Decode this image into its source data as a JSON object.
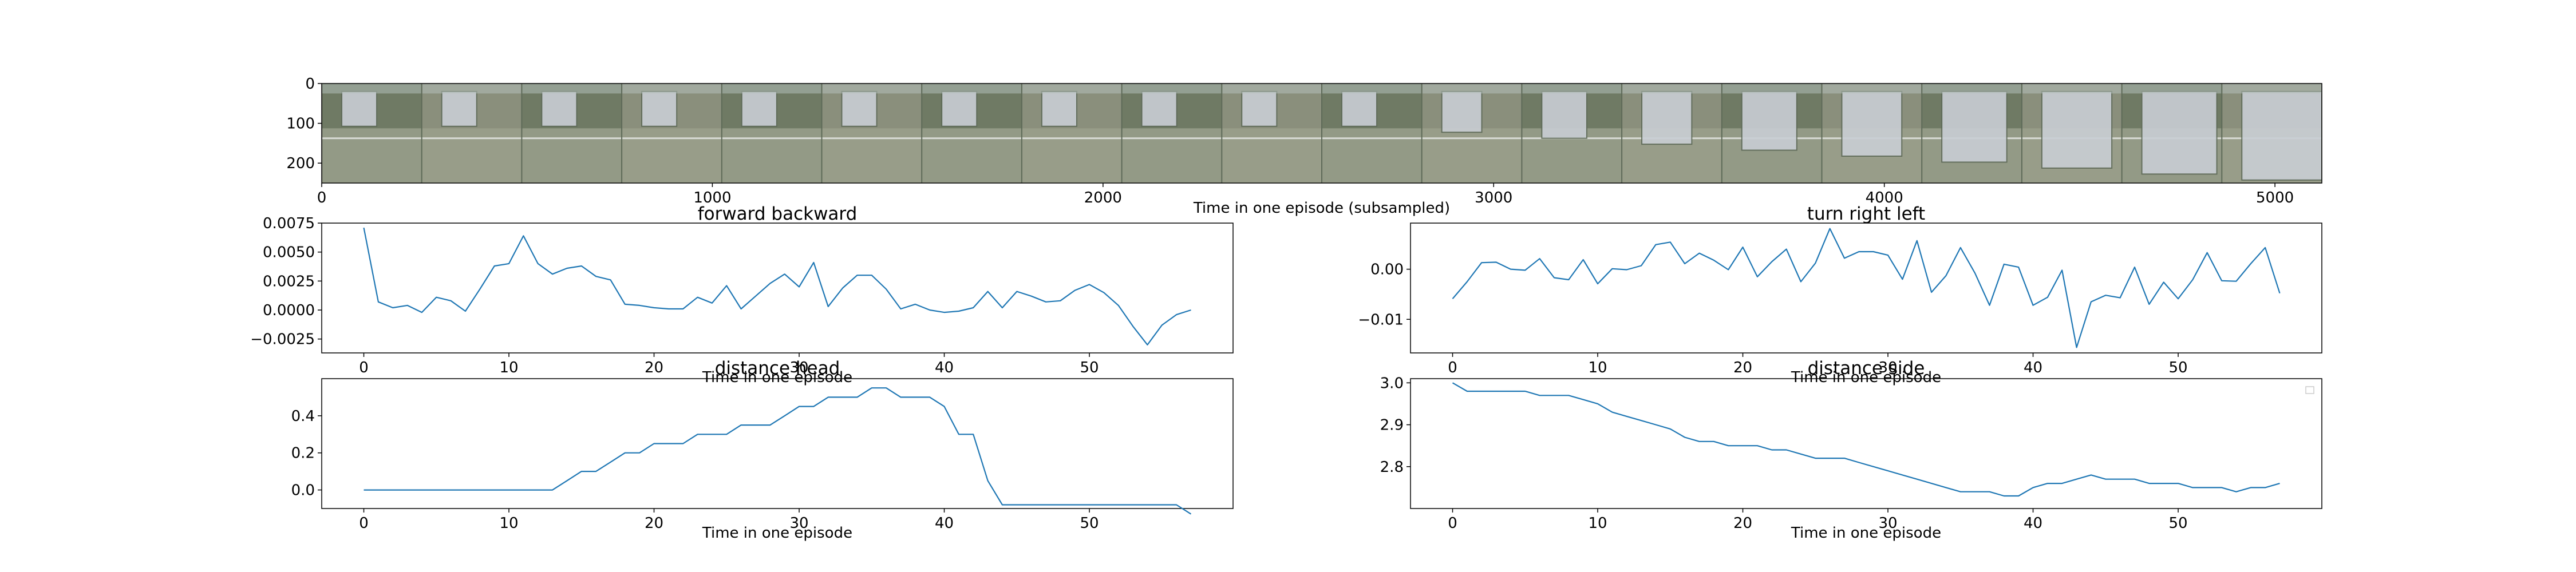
{
  "figure": {
    "background": "#ffffff",
    "line_color": "#1f77b4",
    "strip_colors": [
      "#6f7a64",
      "#8a8f7c",
      "#b8c4c0",
      "#9aa08c",
      "#5e6a58",
      "#c9ced4",
      "#7d8572"
    ]
  },
  "chart_data": [
    {
      "type": "image",
      "title": "",
      "xlabel": "Time in one episode (subsampled)",
      "ylabel": "",
      "xlim": [
        0,
        5120
      ],
      "ylim": [
        250,
        0
      ],
      "x_ticks": [
        0,
        1000,
        2000,
        3000,
        4000,
        5000
      ],
      "x_tick_labels": [
        "0",
        "1000",
        "2000",
        "3000",
        "4000",
        "5000"
      ],
      "y_ticks": [
        0,
        100,
        200
      ],
      "y_tick_labels": [
        "0",
        "100",
        "200"
      ],
      "frame_count": 20
    },
    {
      "type": "line",
      "title": "forward backward",
      "xlabel": "Time in one episode",
      "ylabel": "",
      "xlim": [
        -2.9,
        59.9
      ],
      "ylim": [
        -0.0037,
        0.0075
      ],
      "x_ticks": [
        0,
        10,
        20,
        30,
        40,
        50
      ],
      "x_tick_labels": [
        "0",
        "10",
        "20",
        "30",
        "40",
        "50"
      ],
      "y_ticks": [
        -0.0025,
        0.0,
        0.0025,
        0.005,
        0.0075
      ],
      "y_tick_labels": [
        "−0.0025",
        "0.0000",
        "0.0025",
        "0.0050",
        "0.0075"
      ],
      "grid": false,
      "x": [
        0,
        1,
        2,
        3,
        4,
        5,
        6,
        7,
        8,
        9,
        10,
        11,
        12,
        13,
        14,
        15,
        16,
        17,
        18,
        19,
        20,
        21,
        22,
        23,
        24,
        25,
        26,
        27,
        28,
        29,
        30,
        31,
        32,
        33,
        34,
        35,
        36,
        37,
        38,
        39,
        40,
        41,
        42,
        43,
        44,
        45,
        46,
        47,
        48,
        49,
        50,
        51,
        52,
        53,
        54,
        55,
        56,
        57
      ],
      "series": [
        {
          "values": [
            0.0071,
            0.0007,
            0.0002,
            0.0004,
            -0.0002,
            0.0011,
            0.0008,
            -0.0001,
            0.0018,
            0.0038,
            0.004,
            0.0064,
            0.004,
            0.0031,
            0.0036,
            0.0038,
            0.0029,
            0.0026,
            0.0005,
            0.0004,
            0.0002,
            0.0001,
            0.0001,
            0.0011,
            0.0006,
            0.0021,
            0.0001,
            0.0012,
            0.0023,
            0.0031,
            0.002,
            0.0041,
            0.0003,
            0.0019,
            0.003,
            0.003,
            0.0018,
            0.0001,
            0.0005,
            0.0,
            -0.0002,
            -0.0001,
            0.0002,
            0.0016,
            0.0002,
            0.0016,
            0.0012,
            0.0007,
            0.0008,
            0.0017,
            0.0022,
            0.0015,
            0.0004,
            -0.0014,
            -0.003,
            -0.0013,
            -0.0004,
            0.0
          ]
        }
      ]
    },
    {
      "type": "line",
      "title": "turn right left",
      "xlabel": "Time in one episode",
      "ylabel": "",
      "xlim": [
        -2.9,
        59.9
      ],
      "ylim": [
        -0.0167,
        0.0092
      ],
      "x_ticks": [
        0,
        10,
        20,
        30,
        40,
        50
      ],
      "x_tick_labels": [
        "0",
        "10",
        "20",
        "30",
        "40",
        "50"
      ],
      "y_ticks": [
        -0.01,
        0.0
      ],
      "y_tick_labels": [
        "−0.01",
        "0.00"
      ],
      "grid": false,
      "x": [
        0,
        1,
        2,
        3,
        4,
        5,
        6,
        7,
        8,
        9,
        10,
        11,
        12,
        13,
        14,
        15,
        16,
        17,
        18,
        19,
        20,
        21,
        22,
        23,
        24,
        25,
        26,
        27,
        28,
        29,
        30,
        31,
        32,
        33,
        34,
        35,
        36,
        37,
        38,
        39,
        40,
        41,
        42,
        43,
        44,
        45,
        46,
        47,
        48,
        49,
        50,
        51,
        52,
        53,
        54,
        55,
        56,
        57
      ],
      "series": [
        {
          "values": [
            -0.0059,
            -0.0025,
            0.0013,
            0.0014,
            0.0,
            -0.0002,
            0.0021,
            -0.0017,
            -0.0021,
            0.0019,
            -0.0029,
            0.0001,
            -0.0001,
            0.0007,
            0.0049,
            0.0054,
            0.0011,
            0.0032,
            0.0018,
            -0.0001,
            0.0044,
            -0.0015,
            0.0015,
            0.004,
            -0.0025,
            0.0012,
            0.0081,
            0.0022,
            0.0035,
            0.0035,
            0.0028,
            -0.002,
            0.0057,
            -0.0046,
            -0.0013,
            0.0043,
            -0.0008,
            -0.0072,
            0.001,
            0.0004,
            -0.0072,
            -0.0056,
            -0.0002,
            -0.0156,
            -0.0065,
            -0.0052,
            -0.0057,
            0.0004,
            -0.007,
            -0.0026,
            -0.0059,
            -0.0021,
            0.0033,
            -0.0023,
            -0.0024,
            0.0011,
            0.0043,
            -0.0048
          ]
        }
      ]
    },
    {
      "type": "line",
      "title": "distance head",
      "xlabel": "Time in one episode",
      "ylabel": "",
      "xlim": [
        -2.9,
        59.9
      ],
      "ylim": [
        -0.1,
        0.6
      ],
      "x_ticks": [
        0,
        10,
        20,
        30,
        40,
        50
      ],
      "x_tick_labels": [
        "0",
        "10",
        "20",
        "30",
        "40",
        "50"
      ],
      "y_ticks": [
        0.0,
        0.2,
        0.4
      ],
      "y_tick_labels": [
        "0.0",
        "0.2",
        "0.4"
      ],
      "grid": false,
      "x": [
        0,
        1,
        2,
        3,
        4,
        5,
        6,
        7,
        8,
        9,
        10,
        11,
        12,
        13,
        14,
        15,
        16,
        17,
        18,
        19,
        20,
        21,
        22,
        23,
        24,
        25,
        26,
        27,
        28,
        29,
        30,
        31,
        32,
        33,
        34,
        35,
        36,
        37,
        38,
        39,
        40,
        41,
        42,
        43,
        44,
        45,
        46,
        47,
        48,
        49,
        50,
        51,
        52,
        53,
        54,
        55,
        56,
        57
      ],
      "series": [
        {
          "values": [
            0,
            0,
            0,
            0,
            0,
            0,
            0,
            0,
            0,
            0,
            0,
            0,
            0,
            0,
            0.05,
            0.1,
            0.1,
            0.15,
            0.2,
            0.2,
            0.25,
            0.25,
            0.25,
            0.3,
            0.3,
            0.3,
            0.35,
            0.35,
            0.35,
            0.4,
            0.45,
            0.45,
            0.5,
            0.5,
            0.5,
            0.55,
            0.55,
            0.5,
            0.5,
            0.5,
            0.45,
            0.3,
            0.3,
            0.05,
            -0.08,
            -0.08,
            -0.08,
            -0.08,
            -0.08,
            -0.08,
            -0.08,
            -0.08,
            -0.08,
            -0.08,
            -0.08,
            -0.08,
            -0.08,
            -0.13
          ]
        }
      ]
    },
    {
      "type": "line",
      "title": "distance side",
      "xlabel": "Time in one episode",
      "ylabel": "",
      "xlim": [
        -2.9,
        59.9
      ],
      "ylim": [
        2.7,
        3.01
      ],
      "x_ticks": [
        0,
        10,
        20,
        30,
        40,
        50
      ],
      "x_tick_labels": [
        "0",
        "10",
        "20",
        "30",
        "40",
        "50"
      ],
      "y_ticks": [
        2.8,
        2.9,
        3.0
      ],
      "y_tick_labels": [
        "2.8",
        "2.9",
        "3.0"
      ],
      "grid": false,
      "legend": "top-right",
      "x": [
        0,
        1,
        2,
        3,
        4,
        5,
        6,
        7,
        8,
        9,
        10,
        11,
        12,
        13,
        14,
        15,
        16,
        17,
        18,
        19,
        20,
        21,
        22,
        23,
        24,
        25,
        26,
        27,
        28,
        29,
        30,
        31,
        32,
        33,
        34,
        35,
        36,
        37,
        38,
        39,
        40,
        41,
        42,
        43,
        44,
        45,
        46,
        47,
        48,
        49,
        50,
        51,
        52,
        53,
        54,
        55,
        56,
        57
      ],
      "series": [
        {
          "values": [
            3.0,
            2.98,
            2.98,
            2.98,
            2.98,
            2.98,
            2.97,
            2.97,
            2.97,
            2.96,
            2.95,
            2.93,
            2.92,
            2.91,
            2.9,
            2.89,
            2.87,
            2.86,
            2.86,
            2.85,
            2.85,
            2.85,
            2.84,
            2.84,
            2.83,
            2.82,
            2.82,
            2.82,
            2.81,
            2.8,
            2.79,
            2.78,
            2.77,
            2.76,
            2.75,
            2.74,
            2.74,
            2.74,
            2.73,
            2.73,
            2.75,
            2.76,
            2.76,
            2.77,
            2.78,
            2.77,
            2.77,
            2.77,
            2.76,
            2.76,
            2.76,
            2.75,
            2.75,
            2.75,
            2.74,
            2.75,
            2.75,
            2.76
          ]
        }
      ]
    }
  ]
}
